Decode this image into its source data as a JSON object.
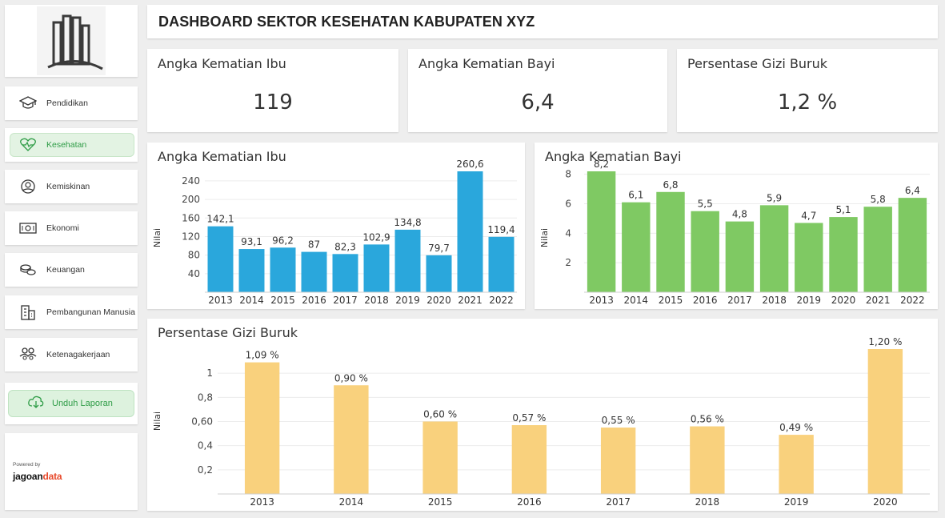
{
  "header": {
    "title": "DASHBOARD SEKTOR KESEHATAN KABUPATEN XYZ"
  },
  "sidebar": {
    "items": [
      {
        "label": "Pendidikan",
        "icon": "graduation-cap-icon"
      },
      {
        "label": "Kesehatan",
        "icon": "heart-pulse-icon",
        "active": true
      },
      {
        "label": "Kemiskinan",
        "icon": "hand-money-icon"
      },
      {
        "label": "Ekonomi",
        "icon": "banknote-icon"
      },
      {
        "label": "Keuangan",
        "icon": "coins-icon"
      },
      {
        "label": "Pembangunan Manusia",
        "icon": "building-icon"
      },
      {
        "label": "Ketenagakerjaan",
        "icon": "users-icon"
      }
    ],
    "download_label": "Unduh Laporan",
    "powered_by": "Powered by",
    "brand_a": "jagoan",
    "brand_b": "data"
  },
  "kpis": [
    {
      "title": "Angka Kematian Ibu",
      "value": "119"
    },
    {
      "title": "Angka Kematian Bayi",
      "value": "6,4"
    },
    {
      "title": "Persentase Gizi Buruk",
      "value": "1,2 %"
    }
  ],
  "colors": {
    "blue": "#2aa7dc",
    "green": "#7fc963",
    "yellow": "#f9d17d",
    "accent": "#2e9c46"
  },
  "chart_data": [
    {
      "type": "bar",
      "title": "Angka Kematian Ibu",
      "ylabel": "Nilai",
      "categories": [
        "2013",
        "2014",
        "2015",
        "2016",
        "2017",
        "2018",
        "2019",
        "2020",
        "2021",
        "2022"
      ],
      "values": [
        142.1,
        93.1,
        96.2,
        87,
        82.3,
        102.9,
        134.8,
        79.7,
        260.6,
        119.4
      ],
      "labels": [
        "142,1",
        "93,1",
        "96,2",
        "87",
        "82,3",
        "102,9",
        "134,8",
        "79,7",
        "260,6",
        "119,4"
      ],
      "yticks": [
        40,
        80,
        120,
        160,
        200,
        240
      ],
      "ytick_labels": [
        "40",
        "80",
        "120",
        "160",
        "200",
        "240"
      ],
      "ylim": [
        0,
        260.6
      ],
      "color": "#2aa7dc"
    },
    {
      "type": "bar",
      "title": "Angka Kematian Bayi",
      "ylabel": "Nilai",
      "categories": [
        "2013",
        "2014",
        "2015",
        "2016",
        "2017",
        "2018",
        "2019",
        "2020",
        "2021",
        "2022"
      ],
      "values": [
        8.2,
        6.1,
        6.8,
        5.5,
        4.8,
        5.9,
        4.7,
        5.1,
        5.8,
        6.4
      ],
      "labels": [
        "8,2",
        "6,1",
        "6,8",
        "5,5",
        "4,8",
        "5,9",
        "4,7",
        "5,1",
        "5,8",
        "6,4"
      ],
      "yticks": [
        2,
        4,
        6,
        8
      ],
      "ytick_labels": [
        "2",
        "4",
        "6",
        "8"
      ],
      "ylim": [
        0,
        8.2
      ],
      "color": "#7fc963"
    },
    {
      "type": "bar",
      "title": "Persentase Gizi Buruk",
      "ylabel": "Nilai",
      "categories": [
        "2013",
        "2014",
        "2015",
        "2016",
        "2017",
        "2018",
        "2019",
        "2020"
      ],
      "values": [
        1.09,
        0.9,
        0.6,
        0.57,
        0.55,
        0.56,
        0.49,
        1.2
      ],
      "labels": [
        "1,09 %",
        "0,90 %",
        "0,60 %",
        "0,57 %",
        "0,55 %",
        "0,56 %",
        "0,49 %",
        "1,20 %"
      ],
      "yticks": [
        0.2,
        0.4,
        0.6,
        0.8,
        1
      ],
      "ytick_labels": [
        "0,2",
        "0,4",
        "0,60",
        "0,8",
        "1"
      ],
      "ylim": [
        0,
        1.2
      ],
      "color": "#f9d17d"
    }
  ]
}
